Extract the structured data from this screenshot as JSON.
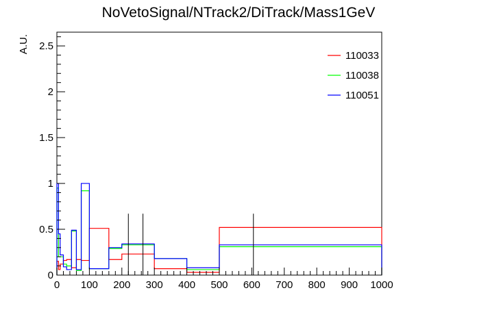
{
  "chart_data": {
    "type": "histogram",
    "title": "NoVetoSignal/NTrack2/DiTrack/Mass1GeV",
    "xlabel": "",
    "ylabel": "A.U.",
    "xlim": [
      0,
      1000
    ],
    "ylim": [
      0,
      2.65
    ],
    "xticks": [
      0,
      100,
      200,
      300,
      400,
      500,
      600,
      700,
      800,
      900,
      1000
    ],
    "yticks": [
      0,
      0.5,
      1,
      1.5,
      2,
      2.5
    ],
    "xtick_labels": [
      "0",
      "100",
      "200",
      "300",
      "400",
      "500",
      "600",
      "700",
      "800",
      "900",
      "1000"
    ],
    "ytick_labels": [
      "0",
      "0.5",
      "1",
      "1.5",
      "2",
      "2.5"
    ],
    "grid": false,
    "legend_position": "top-right",
    "series": [
      {
        "name": "110033",
        "color": "#ff0000",
        "bins": [
          [
            0,
            5,
            0.15
          ],
          [
            5,
            10,
            0.06
          ],
          [
            10,
            20,
            0.12
          ],
          [
            20,
            30,
            0.16
          ],
          [
            30,
            45,
            0.17
          ],
          [
            45,
            60,
            0.08
          ],
          [
            60,
            75,
            0.17
          ],
          [
            75,
            100,
            0.16
          ],
          [
            100,
            160,
            0.51
          ],
          [
            160,
            200,
            0.17
          ],
          [
            200,
            300,
            0.23
          ],
          [
            300,
            400,
            0.07
          ],
          [
            400,
            500,
            0.03
          ],
          [
            500,
            1000,
            0.52
          ]
        ]
      },
      {
        "name": "110038",
        "color": "#00ff00",
        "bins": [
          [
            0,
            5,
            0.95
          ],
          [
            5,
            10,
            0.2
          ],
          [
            10,
            20,
            0.2
          ],
          [
            20,
            30,
            0.12
          ],
          [
            30,
            45,
            0.1
          ],
          [
            45,
            60,
            0.48
          ],
          [
            60,
            75,
            0.05
          ],
          [
            75,
            100,
            0.92
          ],
          [
            100,
            160,
            0.07
          ],
          [
            160,
            200,
            0.29
          ],
          [
            200,
            300,
            0.33
          ],
          [
            300,
            400,
            0.18
          ],
          [
            400,
            500,
            0.06
          ],
          [
            500,
            1000,
            0.31
          ]
        ]
      },
      {
        "name": "110051",
        "color": "#0000ff",
        "bins": [
          [
            0,
            5,
            1.0
          ],
          [
            5,
            10,
            0.45
          ],
          [
            10,
            20,
            0.22
          ],
          [
            20,
            30,
            0.09
          ],
          [
            30,
            45,
            0.06
          ],
          [
            45,
            60,
            0.49
          ],
          [
            60,
            75,
            0.06
          ],
          [
            75,
            100,
            1.0
          ],
          [
            100,
            160,
            0.07
          ],
          [
            160,
            200,
            0.3
          ],
          [
            200,
            300,
            0.34
          ],
          [
            300,
            400,
            0.18
          ],
          [
            400,
            500,
            0.08
          ],
          [
            500,
            1000,
            0.33
          ]
        ]
      }
    ],
    "error_bars": [
      {
        "x": 220,
        "low": 0,
        "high": 0.67
      },
      {
        "x": 265,
        "low": 0,
        "high": 0.67
      },
      {
        "x": 605,
        "low": 0,
        "high": 0.67
      }
    ]
  }
}
